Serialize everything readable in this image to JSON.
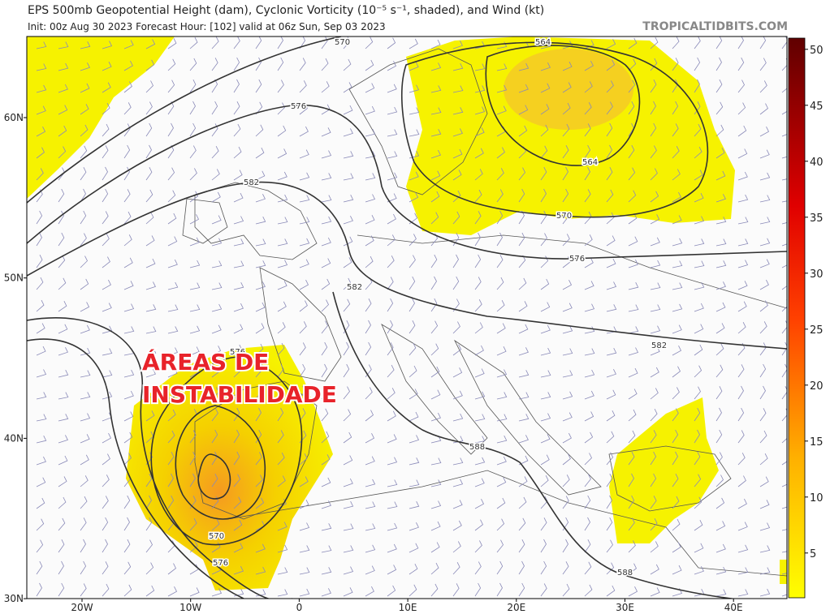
{
  "header": {
    "title": "EPS 500mb Geopotential Height (dam), Cyclonic Vorticity (10⁻⁵ s⁻¹, shaded), and Wind (kt)",
    "subtitle": "Init: 00z Aug 30 2023   Forecast Hour: [102]   valid at 06z Sun, Sep 03 2023",
    "credit": "TROPICALTIDBITS.COM"
  },
  "map": {
    "lat_labels": [
      "60N",
      "50N",
      "40N",
      "30N"
    ],
    "lon_labels": [
      "20W",
      "10W",
      "0",
      "10E",
      "20E",
      "30E",
      "40E"
    ],
    "contour_labels": [
      "570",
      "576",
      "582",
      "564",
      "564",
      "570",
      "576",
      "582",
      "582",
      "576",
      "588",
      "570",
      "576",
      "588"
    ],
    "annotation": [
      "ÁREAS DE",
      "INSTABILIDADE"
    ]
  },
  "colorbar": {
    "range": [
      1,
      51
    ],
    "ticks": [
      5,
      10,
      15,
      20,
      25,
      30,
      35,
      40,
      45,
      50
    ]
  }
}
